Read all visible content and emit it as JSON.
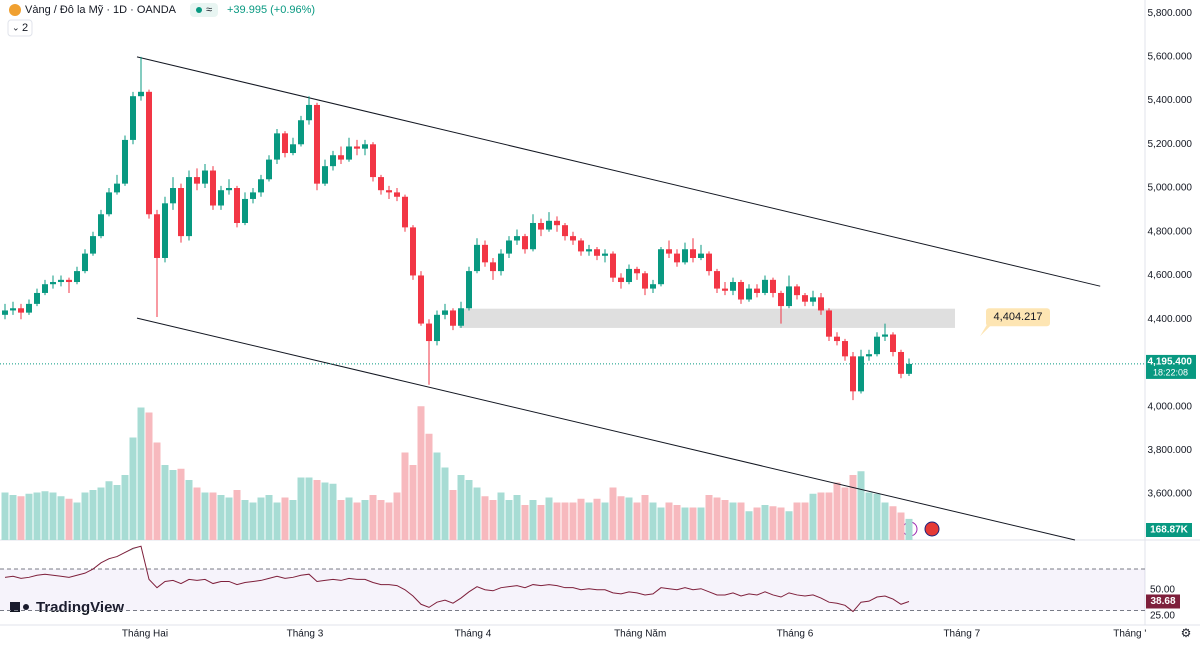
{
  "chart_data": {
    "type": "candlestick",
    "title": "Vàng / Đô la Mỹ · 1D · OANDA",
    "change": "+39.995 (+0.96%)",
    "indicator_count": 2,
    "brand": "TradingView",
    "up_color": "#089981",
    "down_color": "#f23645",
    "candles": {
      "open": [
        4420,
        4440,
        4450,
        4430,
        4470,
        4520,
        4560,
        4570,
        4580,
        4570,
        4620,
        4700,
        4780,
        4880,
        4980,
        5020,
        5220,
        5420,
        5440,
        4880,
        4680,
        4930,
        5000,
        4780,
        5050,
        5020,
        5080,
        4920,
        4990,
        5000,
        4840,
        4950,
        4980,
        5040,
        5130,
        5250,
        5160,
        5200,
        5310,
        5380,
        5020,
        5100,
        5150,
        5130,
        5190,
        5180,
        5200,
        5050,
        4990,
        4980,
        4960,
        4820,
        4600,
        4380,
        4300,
        4420,
        4440,
        4370,
        4450,
        4620,
        4740,
        4660,
        4620,
        4700,
        4760,
        4780,
        4720,
        4840,
        4810,
        4850,
        4830,
        4780,
        4760,
        4710,
        4720,
        4690,
        4700,
        4590,
        4570,
        4630,
        4610,
        4540,
        4560,
        4720,
        4700,
        4660,
        4720,
        4680,
        4700,
        4620,
        4540,
        4530,
        4570,
        4490,
        4540,
        4520,
        4580,
        4520,
        4460,
        4550,
        4510,
        4480,
        4500,
        4440,
        4320,
        4300,
        4230,
        4070,
        4230,
        4240,
        4320,
        4330,
        4250,
        4150
      ],
      "high": [
        4470,
        4480,
        4470,
        4490,
        4540,
        4580,
        4600,
        4600,
        4590,
        4640,
        4720,
        4800,
        4900,
        5000,
        5060,
        5240,
        5440,
        5600,
        5450,
        4900,
        4960,
        5050,
        5020,
        5080,
        5090,
        5110,
        5100,
        5010,
        5040,
        5010,
        4980,
        5000,
        5060,
        5150,
        5270,
        5260,
        5230,
        5330,
        5420,
        5390,
        5130,
        5170,
        5190,
        5230,
        5220,
        5220,
        5210,
        5060,
        5010,
        5000,
        4970,
        4830,
        4620,
        4400,
        4440,
        4470,
        4450,
        4480,
        4640,
        4770,
        4760,
        4680,
        4720,
        4780,
        4810,
        4790,
        4880,
        4860,
        4890,
        4870,
        4840,
        4800,
        4770,
        4740,
        4730,
        4720,
        4710,
        4610,
        4650,
        4640,
        4620,
        4580,
        4730,
        4760,
        4720,
        4750,
        4770,
        4740,
        4710,
        4630,
        4570,
        4590,
        4580,
        4560,
        4560,
        4600,
        4590,
        4530,
        4600,
        4560,
        4520,
        4530,
        4520,
        4450,
        4340,
        4310,
        4250,
        4260,
        4260,
        4340,
        4380,
        4340,
        4260,
        4220
      ],
      "low": [
        4400,
        4420,
        4400,
        4420,
        4460,
        4510,
        4540,
        4550,
        4520,
        4560,
        4610,
        4690,
        4770,
        4870,
        4970,
        5010,
        5200,
        5400,
        4860,
        4410,
        4660,
        4900,
        4750,
        4760,
        4990,
        5000,
        4900,
        4900,
        4970,
        4820,
        4830,
        4930,
        4960,
        5030,
        5110,
        5140,
        5150,
        5190,
        5290,
        4990,
        5010,
        5080,
        5110,
        5120,
        5150,
        5150,
        5030,
        4970,
        4950,
        4940,
        4800,
        4580,
        4370,
        4100,
        4280,
        4400,
        4350,
        4360,
        4440,
        4610,
        4640,
        4580,
        4600,
        4680,
        4740,
        4700,
        4710,
        4780,
        4800,
        4800,
        4760,
        4740,
        4690,
        4690,
        4670,
        4660,
        4570,
        4540,
        4560,
        4580,
        4510,
        4520,
        4550,
        4680,
        4640,
        4650,
        4660,
        4670,
        4600,
        4520,
        4510,
        4510,
        4470,
        4480,
        4500,
        4510,
        4500,
        4380,
        4450,
        4490,
        4460,
        4460,
        4420,
        4300,
        4280,
        4210,
        4030,
        4060,
        4210,
        4230,
        4300,
        4230,
        4130,
        4140
      ],
      "close": [
        4440,
        4450,
        4430,
        4470,
        4520,
        4560,
        4570,
        4580,
        4570,
        4620,
        4700,
        4780,
        4880,
        4980,
        5020,
        5220,
        5420,
        5440,
        4880,
        4680,
        4930,
        5000,
        4780,
        5050,
        5020,
        5080,
        4920,
        4990,
        5000,
        4840,
        4950,
        4980,
        5040,
        5130,
        5250,
        5160,
        5200,
        5310,
        5380,
        5020,
        5100,
        5150,
        5130,
        5190,
        5180,
        5200,
        5050,
        4990,
        4980,
        4960,
        4820,
        4600,
        4380,
        4300,
        4420,
        4440,
        4370,
        4450,
        4620,
        4740,
        4660,
        4620,
        4700,
        4760,
        4780,
        4720,
        4840,
        4810,
        4850,
        4830,
        4780,
        4760,
        4710,
        4720,
        4690,
        4700,
        4590,
        4570,
        4630,
        4610,
        4540,
        4560,
        4720,
        4700,
        4660,
        4720,
        4680,
        4700,
        4620,
        4540,
        4530,
        4570,
        4490,
        4540,
        4520,
        4580,
        4520,
        4460,
        4550,
        4510,
        4480,
        4500,
        4440,
        4320,
        4300,
        4230,
        4070,
        4230,
        4240,
        4320,
        4330,
        4250,
        4150,
        4195.4
      ]
    },
    "xlim": [
      -0.625,
      142.5
    ],
    "xticks": [
      {
        "value": 17.5,
        "label": "Tháng Hai"
      },
      {
        "value": 37.5,
        "label": "Tháng 3"
      },
      {
        "value": 58.5,
        "label": "Tháng 4"
      },
      {
        "value": 79.4,
        "label": "Tháng Năm"
      },
      {
        "value": 98.75,
        "label": "Tháng 6"
      },
      {
        "value": 119.6,
        "label": "Tháng 7"
      },
      {
        "value": 140.6,
        "label": "Tháng '"
      }
    ],
    "ylim": [
      3390,
      5860
    ],
    "yticks": [
      {
        "value": 5800,
        "label": "5,800.000"
      },
      {
        "value": 5600,
        "label": "5,600.000"
      },
      {
        "value": 5400,
        "label": "5,400.000"
      },
      {
        "value": 5200,
        "label": "5,200.000"
      },
      {
        "value": 5000,
        "label": "5,000.000"
      },
      {
        "value": 4800,
        "label": "4,800.000"
      },
      {
        "value": 4600,
        "label": "4,600.000"
      },
      {
        "value": 4400,
        "label": "4,400.000"
      },
      {
        "value": 4200,
        "label": "4,200.000"
      },
      {
        "value": 4000,
        "label": "4,000.000"
      },
      {
        "value": 3800,
        "label": "3,800.000"
      },
      {
        "value": 3600,
        "label": "3,600.000"
      }
    ],
    "grid": false,
    "last_price": {
      "value": 4195.4,
      "label": "4,195.400"
    },
    "countdown": "18:22:08",
    "zone": {
      "x": [
        56.75,
        118.75
      ],
      "y": [
        4360,
        4448
      ],
      "color": "#d9d9d9"
    },
    "zone_label": {
      "value": 4404.217,
      "label": "4,404.217"
    },
    "trendlines": [
      {
        "x": [
          16.5,
          136.9
        ],
        "y": [
          5600,
          4551
        ]
      },
      {
        "x": [
          16.5,
          133.75
        ],
        "y": [
          4405,
          3390
        ]
      }
    ],
    "volume": {
      "ylim": [
        0,
        1200
      ],
      "up_color": "#a7dcd4",
      "down_color": "#f7b9be",
      "last_label": "168.87K",
      "values": [
        380,
        360,
        350,
        370,
        380,
        390,
        380,
        350,
        330,
        300,
        380,
        400,
        420,
        470,
        440,
        520,
        820,
        1060,
        1020,
        780,
        600,
        560,
        570,
        480,
        420,
        380,
        380,
        360,
        340,
        400,
        320,
        300,
        340,
        360,
        300,
        340,
        320,
        500,
        500,
        480,
        460,
        450,
        320,
        340,
        300,
        320,
        360,
        320,
        300,
        380,
        700,
        600,
        1070,
        850,
        700,
        580,
        400,
        520,
        480,
        420,
        350,
        320,
        380,
        320,
        360,
        280,
        320,
        280,
        340,
        300,
        300,
        300,
        330,
        300,
        330,
        300,
        420,
        350,
        340,
        300,
        360,
        300,
        260,
        300,
        280,
        260,
        260,
        260,
        360,
        340,
        320,
        300,
        300,
        230,
        260,
        280,
        270,
        260,
        230,
        300,
        300,
        370,
        380,
        380,
        460,
        420,
        520,
        550,
        380,
        370,
        300,
        270,
        220,
        168.87
      ]
    },
    "rsi": {
      "color": "#7e1f3b",
      "ylim": [
        16,
        98
      ],
      "bands": [
        30,
        70
      ],
      "yticks": [
        {
          "value": 50,
          "label": "50.00"
        },
        {
          "value": 25,
          "label": "25.00"
        }
      ],
      "last_label": "38.68",
      "values": [
        62,
        63,
        61,
        62,
        64,
        65,
        64,
        63,
        62,
        64,
        66,
        70,
        76,
        80,
        82,
        86,
        90,
        92,
        60,
        52,
        58,
        59,
        56,
        60,
        59,
        60,
        56,
        58,
        58,
        55,
        57,
        58,
        59,
        61,
        63,
        61,
        62,
        64,
        65,
        58,
        59,
        60,
        59,
        61,
        60,
        60,
        57,
        55,
        55,
        54,
        50,
        44,
        36,
        33,
        38,
        40,
        37,
        42,
        48,
        53,
        50,
        49,
        52,
        53,
        54,
        52,
        55,
        54,
        55,
        54,
        52,
        52,
        50,
        51,
        50,
        50,
        47,
        46,
        48,
        47,
        45,
        46,
        52,
        51,
        50,
        52,
        50,
        51,
        48,
        45,
        45,
        47,
        44,
        46,
        45,
        48,
        45,
        43,
        47,
        45,
        44,
        45,
        42,
        38,
        37,
        35,
        29,
        38,
        39,
        43,
        44,
        41,
        36,
        38.68
      ]
    }
  }
}
